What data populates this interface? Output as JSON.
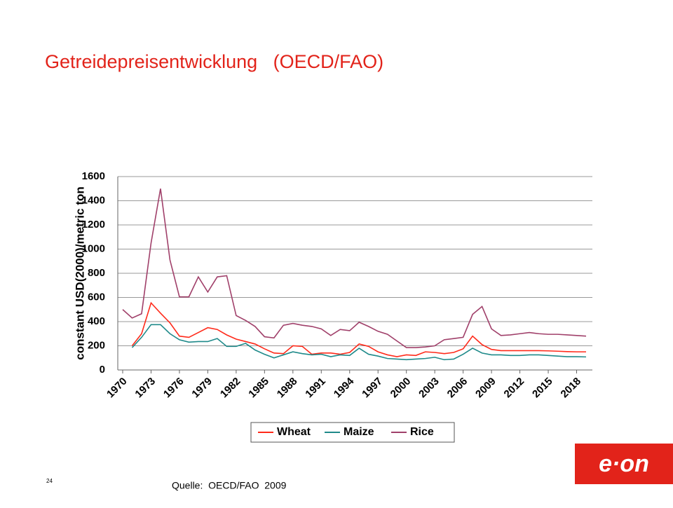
{
  "slide_title": "Getreidepreisentwicklung   (OECD/FAO)",
  "page_number": "24",
  "source": "Quelle:  OECD/FAO  2009",
  "logo": "e·on",
  "chart_data": {
    "type": "line",
    "ylabel": "constant USD(2000)/metric ton",
    "x": [
      1970,
      1971,
      1972,
      1973,
      1974,
      1975,
      1976,
      1977,
      1978,
      1979,
      1980,
      1981,
      1982,
      1983,
      1984,
      1985,
      1986,
      1987,
      1988,
      1989,
      1990,
      1991,
      1992,
      1993,
      1994,
      1995,
      1996,
      1997,
      1998,
      1999,
      2000,
      2001,
      2002,
      2003,
      2004,
      2005,
      2006,
      2007,
      2008,
      2009,
      2010,
      2011,
      2012,
      2013,
      2014,
      2015,
      2016,
      2017,
      2018,
      2019
    ],
    "xlim": [
      1970,
      2019
    ],
    "xticks": [
      1970,
      1973,
      1976,
      1979,
      1982,
      1985,
      1988,
      1991,
      1994,
      1997,
      2000,
      2003,
      2006,
      2009,
      2012,
      2015,
      2018
    ],
    "ylim": [
      0,
      1600
    ],
    "yticks": [
      0,
      200,
      400,
      600,
      800,
      1000,
      1200,
      1400,
      1600
    ],
    "grid": true,
    "legend": "bottom",
    "series": [
      {
        "name": "Wheat",
        "color": "#ff2a1a",
        "values": [
          null,
          200,
          300,
          555,
          470,
          390,
          280,
          270,
          310,
          350,
          335,
          290,
          255,
          235,
          215,
          175,
          140,
          135,
          200,
          195,
          130,
          140,
          140,
          130,
          145,
          215,
          195,
          150,
          125,
          110,
          125,
          120,
          150,
          145,
          135,
          145,
          175,
          280,
          210,
          170,
          160,
          160,
          160,
          160,
          160,
          158,
          155,
          152,
          150,
          150
        ]
      },
      {
        "name": "Maize",
        "color": "#1f8a8a",
        "values": [
          null,
          185,
          270,
          375,
          375,
          300,
          250,
          230,
          235,
          235,
          260,
          195,
          195,
          220,
          165,
          130,
          100,
          125,
          150,
          135,
          125,
          130,
          110,
          125,
          120,
          180,
          130,
          115,
          95,
          90,
          85,
          90,
          95,
          105,
          85,
          90,
          130,
          180,
          140,
          125,
          125,
          120,
          120,
          125,
          125,
          120,
          115,
          110,
          110,
          108
        ]
      },
      {
        "name": "Rice",
        "color": "#a0406a",
        "values": [
          500,
          430,
          465,
          1050,
          1500,
          910,
          605,
          605,
          770,
          645,
          770,
          780,
          450,
          410,
          360,
          275,
          265,
          370,
          385,
          370,
          360,
          340,
          285,
          335,
          325,
          395,
          360,
          320,
          295,
          240,
          185,
          185,
          190,
          200,
          250,
          260,
          270,
          460,
          525,
          340,
          285,
          290,
          300,
          310,
          300,
          295,
          295,
          290,
          285,
          280
        ]
      }
    ]
  }
}
